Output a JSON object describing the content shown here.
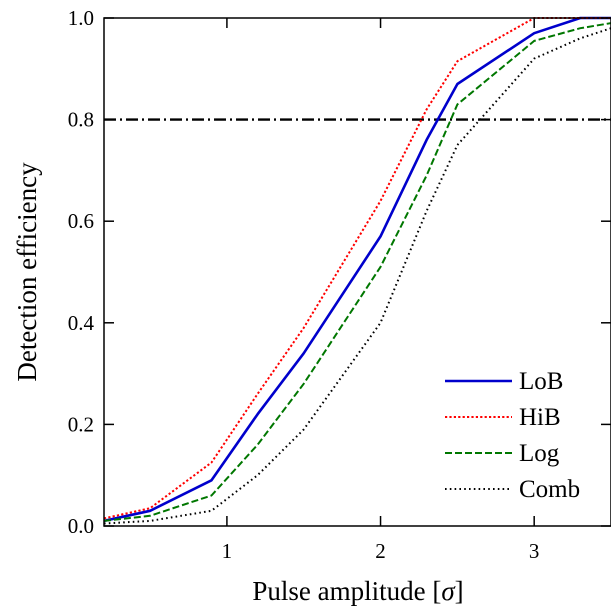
{
  "chart_data": {
    "type": "line",
    "xlabel": "Pulse amplitude [σ]",
    "ylabel": "Detection efficiency",
    "xlim": [
      0.2,
      3.5
    ],
    "ylim": [
      0.0,
      1.0
    ],
    "xticks": [
      1,
      2,
      3
    ],
    "xtick_labels": [
      "1",
      "2",
      "3"
    ],
    "yticks": [
      0.0,
      0.2,
      0.4,
      0.6,
      0.8,
      1.0
    ],
    "ytick_labels": [
      "0.0",
      "0.2",
      "0.4",
      "0.6",
      "0.8",
      "1.0"
    ],
    "grid": false,
    "legend_position": "bottom-right",
    "reference_line": {
      "y": 0.8,
      "style": "dash-dot",
      "color": "#000000"
    },
    "x": [
      0.2,
      0.5,
      0.9,
      1.2,
      1.5,
      2.0,
      2.3,
      2.5,
      3.0,
      3.3,
      3.5
    ],
    "series": [
      {
        "name": "LoB",
        "color": "#0000cc",
        "style": "solid",
        "values": [
          0.01,
          0.03,
          0.09,
          0.22,
          0.34,
          0.57,
          0.76,
          0.87,
          0.97,
          1.0,
          1.0
        ]
      },
      {
        "name": "HiB",
        "color": "#ff0000",
        "style": "dotted",
        "values": [
          0.015,
          0.035,
          0.125,
          0.26,
          0.39,
          0.64,
          0.82,
          0.915,
          1.0,
          1.0,
          1.0
        ]
      },
      {
        "name": "Log",
        "color": "#007700",
        "style": "dashed",
        "values": [
          0.01,
          0.02,
          0.06,
          0.16,
          0.28,
          0.51,
          0.69,
          0.83,
          0.955,
          0.98,
          0.99
        ]
      },
      {
        "name": "Comb",
        "color": "#000000",
        "style": "fine-dotted",
        "values": [
          0.005,
          0.01,
          0.03,
          0.1,
          0.19,
          0.4,
          0.62,
          0.75,
          0.92,
          0.96,
          0.98
        ]
      }
    ]
  }
}
